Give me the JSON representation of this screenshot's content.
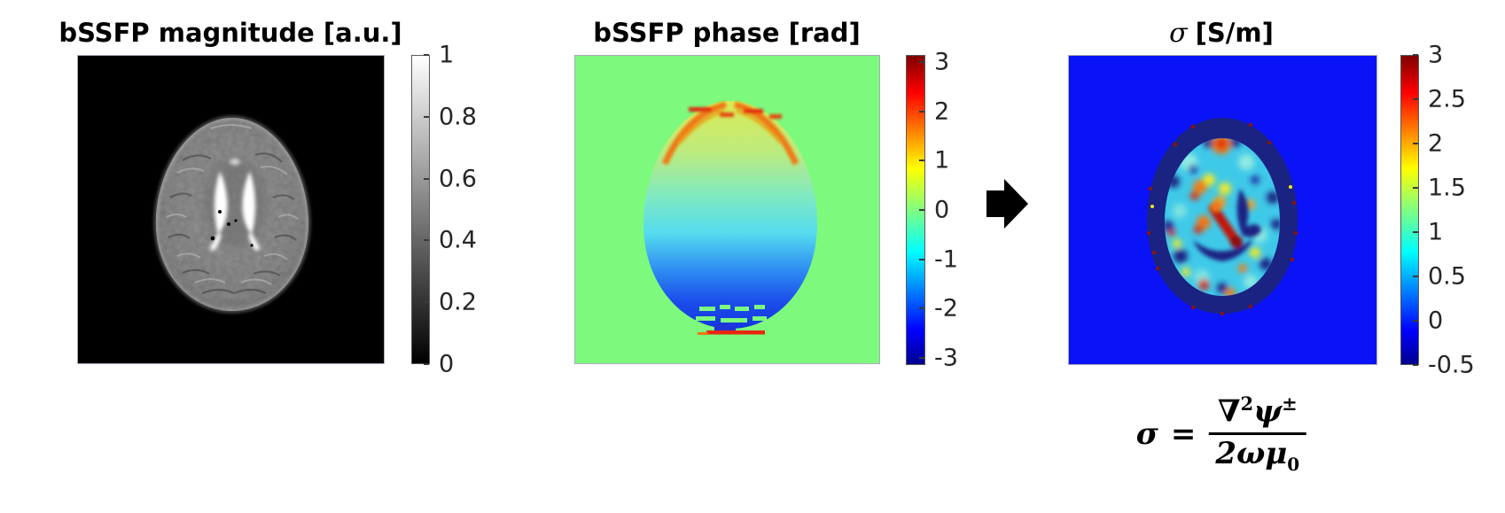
{
  "panels": [
    {
      "id": "magnitude",
      "title": "bSSFP magnitude [a.u.]",
      "colormap": "gray",
      "bg_color": "#000000",
      "colorbar": {
        "min": 0,
        "max": 1,
        "ticks": [
          {
            "value": 1,
            "label": "1"
          },
          {
            "value": 0.8,
            "label": "0.8"
          },
          {
            "value": 0.6,
            "label": "0.6"
          },
          {
            "value": 0.4,
            "label": "0.4"
          },
          {
            "value": 0.2,
            "label": "0.2"
          },
          {
            "value": 0,
            "label": "0"
          }
        ]
      }
    },
    {
      "id": "phase",
      "title": "bSSFP phase [rad]",
      "colormap": "jet",
      "bg_color": "#7dfa7d",
      "colorbar": {
        "min": -3.1416,
        "max": 3.1416,
        "ticks": [
          {
            "value": 3,
            "label": "3"
          },
          {
            "value": 2,
            "label": "2"
          },
          {
            "value": 1,
            "label": "1"
          },
          {
            "value": 0,
            "label": "0"
          },
          {
            "value": -1,
            "label": "-1"
          },
          {
            "value": -2,
            "label": "-2"
          },
          {
            "value": -3,
            "label": "-3"
          }
        ]
      }
    },
    {
      "id": "sigma",
      "title_symbol": "σ",
      "title_rest": "[S/m]",
      "full_title": "σ [S/m]",
      "colormap": "jet",
      "bg_color": "#0a12f7",
      "rim_color": "#1a2382",
      "interior_color": "#3fc9e9",
      "colorbar": {
        "min": -0.5,
        "max": 3,
        "ticks": [
          {
            "value": 3,
            "label": "3"
          },
          {
            "value": 2.5,
            "label": "2.5"
          },
          {
            "value": 2,
            "label": "2"
          },
          {
            "value": 1.5,
            "label": "1.5"
          },
          {
            "value": 1,
            "label": "1"
          },
          {
            "value": 0.5,
            "label": "0.5"
          },
          {
            "value": 0,
            "label": "0"
          },
          {
            "value": -0.5,
            "label": "-0.5"
          }
        ]
      }
    }
  ],
  "arrow": {
    "direction": "right",
    "color": "#000000"
  },
  "formula": {
    "sigma": "σ",
    "equals": "=",
    "nabla": "∇",
    "nabla_exp": "2",
    "psi": "ψ",
    "psi_sup": "±",
    "den_two": "2",
    "omega": "ω",
    "mu": "μ",
    "mu_sub": "0"
  },
  "chart_data": [
    {
      "type": "heatmap",
      "title": "bSSFP magnitude [a.u.]",
      "colormap": "gray",
      "value_range": [
        0,
        1
      ],
      "colorbar_ticks": [
        0,
        0.2,
        0.4,
        0.6,
        0.8,
        1
      ],
      "legend_position": "right",
      "description": "Axial brain MRI magnitude image: black background (0), mid-gray brain tissue (~0.45-0.6) with darker sulci texture, bright white X-shaped lateral ventricles (~1) at center, few tiny black specks near ventricles."
    },
    {
      "type": "heatmap",
      "title": "bSSFP phase [rad]",
      "colormap": "jet",
      "value_range": [
        -3.1416,
        3.1416
      ],
      "colorbar_ticks": [
        -3,
        -2,
        -1,
        0,
        1,
        2,
        3
      ],
      "legend_position": "right",
      "description": "Axial brain phase map: uniform green background (0 rad); inside the head a smooth vertical gradient from ~+1 rad (yellow) at the top through 0/cyan mid-brain to ~-2.5 rad (deep blue) at the bottom; jagged orange-red phase-wrap arcs (~+2.5 rad) along the upper skull rim; green wrap dashes across the lower blue region; short dark-blue and red (~+3 rad) wrap strips just below the head."
    },
    {
      "type": "heatmap",
      "title": "σ [S/m]",
      "colormap": "jet",
      "value_range": [
        -0.5,
        3
      ],
      "colorbar_ticks": [
        -0.5,
        0,
        0.5,
        1,
        1.5,
        2,
        2.5,
        3
      ],
      "legend_position": "right",
      "description": "Reconstructed electrical conductivity map: flat blue background (~0 S/m); dark-navy skull/CSF rim (~-0.5 S/m) with scattered dark-red speckles (~3 S/m) on its edge; mottled cyan brain interior (~0.7-1 S/m) with dark-blue low spots and red/orange/yellow hotspots (~1.5-3 S/m) concentrated around the ventricles; dark-navy ventricle shapes at center."
    }
  ]
}
